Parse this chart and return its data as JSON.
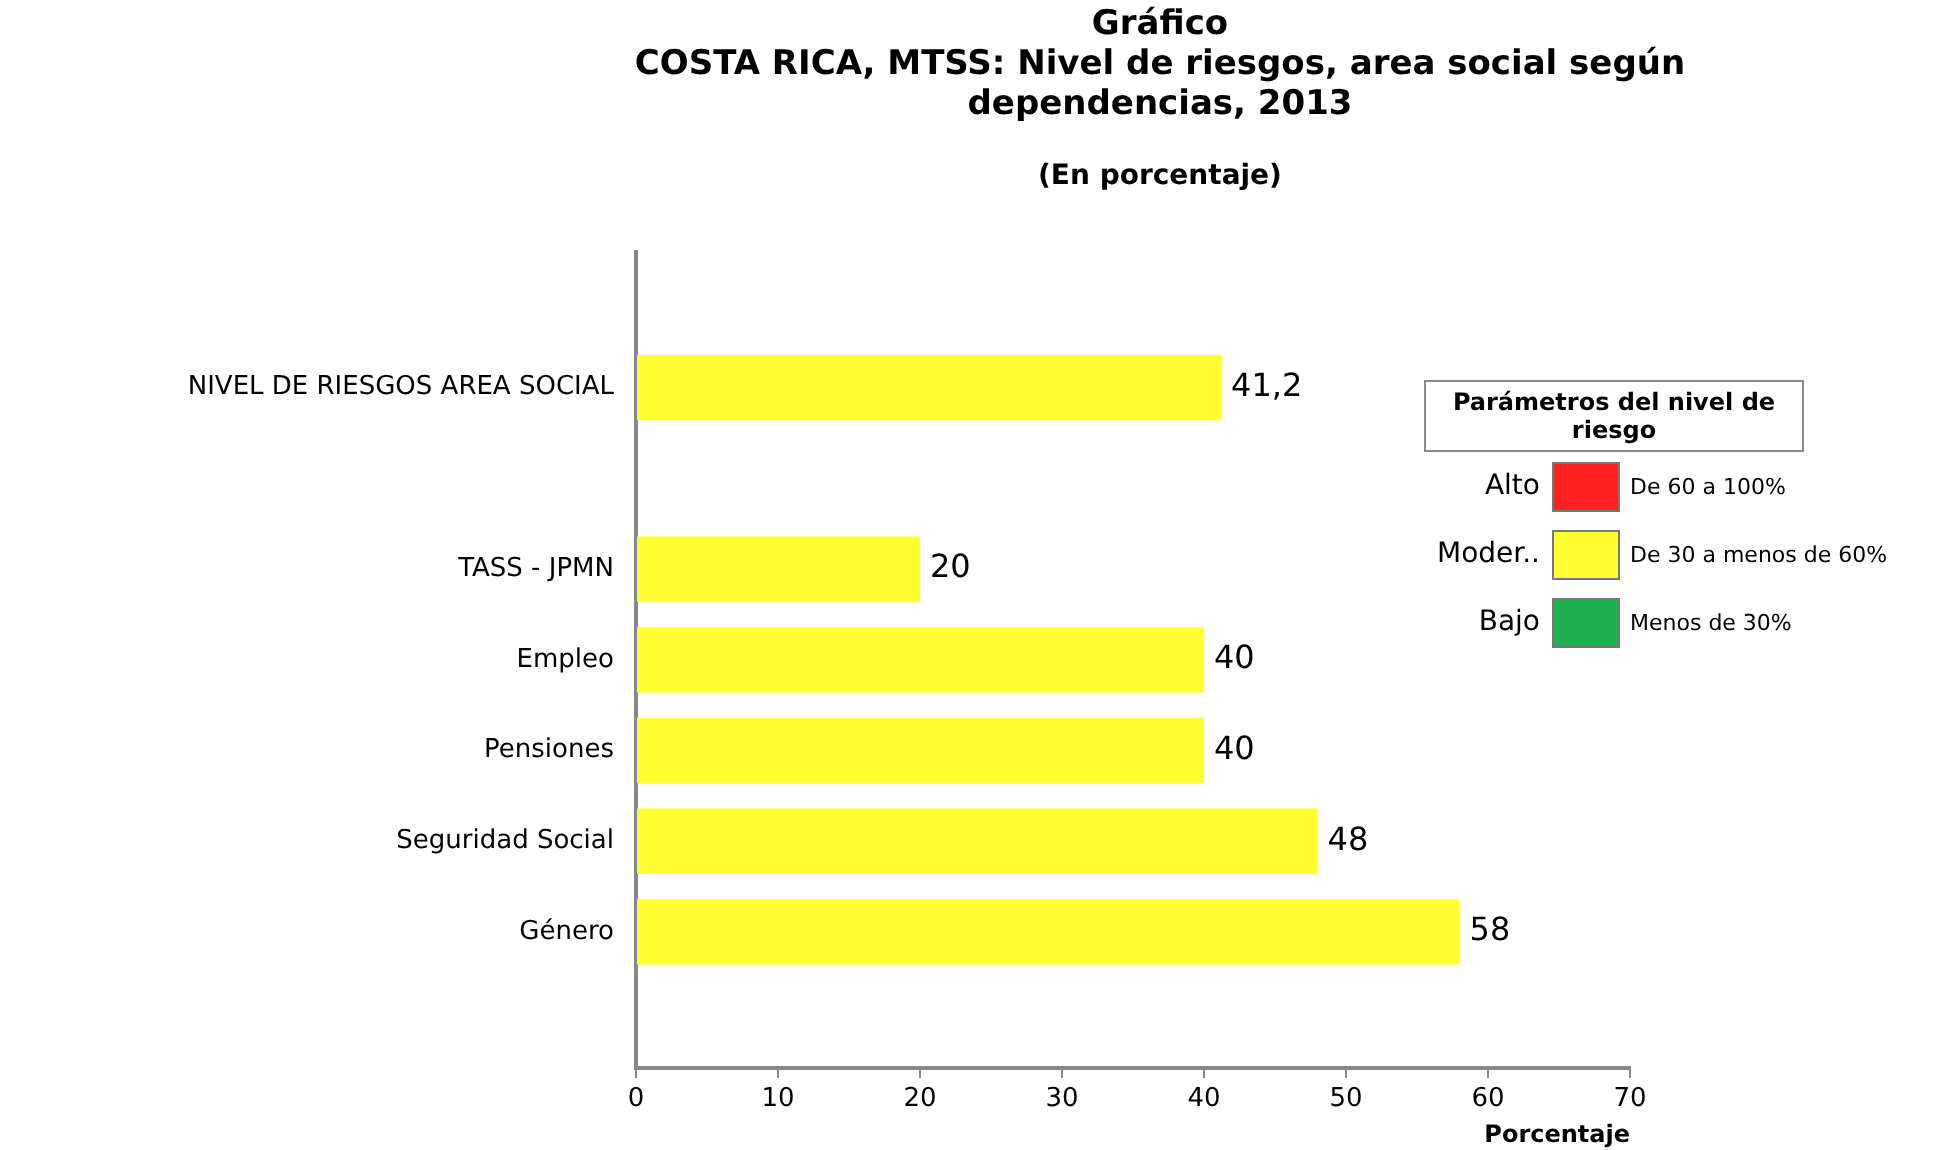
{
  "chart_data": {
    "type": "bar",
    "orientation": "horizontal",
    "title": "Gráfico\nCOSTA RICA, MTSS:  Nivel de riesgos, area social según dependencias, 2013",
    "subtitle": "(En porcentaje)",
    "xlabel": "Porcentaje",
    "categories": [
      null,
      "NIVEL DE RIESGOS AREA SOCIAL",
      null,
      "TASS - JPMN",
      "Empleo",
      "Pensiones",
      "Seguridad Social",
      "Género",
      null
    ],
    "values": [
      null,
      41.2,
      null,
      20,
      40,
      40,
      48,
      58,
      null
    ],
    "value_labels": [
      null,
      "41,2",
      null,
      "20",
      "40",
      "40",
      "48",
      "58",
      null
    ],
    "color": "#ffff33",
    "xlim": [
      0,
      70
    ],
    "xticks": [
      0,
      10,
      20,
      30,
      40,
      50,
      60,
      70
    ],
    "grid": false,
    "legend": false,
    "annotations": [
      "Parámetros del nivel de riesgo",
      "Alto",
      "De 60 a 100%",
      "Moder..",
      "De 30 a menos de 60%",
      "Bajo",
      "Menos de 30%"
    ]
  }
}
